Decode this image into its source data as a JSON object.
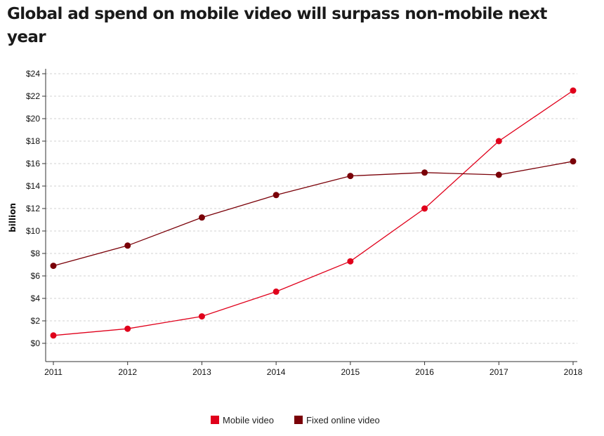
{
  "title": "Global ad spend on mobile video will surpass non-mobile next year",
  "chart_data": {
    "type": "line",
    "title": "Global ad spend on mobile video will surpass non-mobile next year",
    "xlabel": "",
    "ylabel": "billion",
    "x": [
      "2011",
      "2012",
      "2013",
      "2014",
      "2015",
      "2016",
      "2017",
      "2018"
    ],
    "ylim": [
      0,
      24
    ],
    "yticks": [
      "$0",
      "$2",
      "$4",
      "$6",
      "$8",
      "$10",
      "$12",
      "$14",
      "$16",
      "$18",
      "$20",
      "$22",
      "$24"
    ],
    "grid": true,
    "legend_position": "bottom-center",
    "series": [
      {
        "name": "Mobile video",
        "color": "#e0001b",
        "values": [
          0.7,
          1.3,
          2.4,
          4.6,
          7.3,
          12.0,
          18.0,
          22.5
        ]
      },
      {
        "name": "Fixed online video",
        "color": "#7a0008",
        "values": [
          6.9,
          8.7,
          11.2,
          13.2,
          14.9,
          15.2,
          15.0,
          16.2
        ]
      }
    ]
  }
}
